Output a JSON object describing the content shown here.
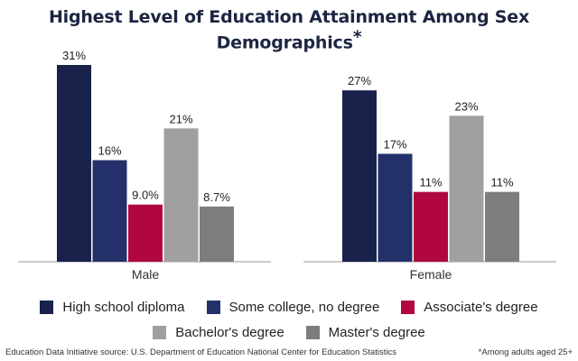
{
  "title": "Highest Level of Education Attainment Among Sex Demographics",
  "title_marker": "*",
  "footer_source": "Education Data Initiative source: U.S. Department of Education National Center for Education Statistics",
  "footer_note": "*Among adults aged 25+",
  "colors": {
    "High school diploma": "#18224a",
    "Some college, no degree": "#24306a",
    "Associate's degree": "#b0073f",
    "Bachelor's degree": "#a0a0a0",
    "Master's degree": "#7d7d7d"
  },
  "chart_data": {
    "type": "bar",
    "title": "Highest Level of Education Attainment Among Sex Demographics",
    "categories": [
      "Male",
      "Female"
    ],
    "series": [
      {
        "name": "High school diploma",
        "values": [
          31,
          27
        ],
        "labels": [
          "31%",
          "27%"
        ]
      },
      {
        "name": "Some college, no degree",
        "values": [
          16,
          17
        ],
        "labels": [
          "16%",
          "17%"
        ]
      },
      {
        "name": "Associate's degree",
        "values": [
          9.0,
          11
        ],
        "labels": [
          "9.0%",
          "11%"
        ]
      },
      {
        "name": "Bachelor's degree",
        "values": [
          21,
          23
        ],
        "labels": [
          "21%",
          "23%"
        ]
      },
      {
        "name": "Master's degree",
        "values": [
          8.7,
          11
        ],
        "labels": [
          "8.7%",
          "11%"
        ]
      }
    ],
    "ylim": [
      0,
      31
    ],
    "grid": false,
    "legend_position": "bottom"
  }
}
